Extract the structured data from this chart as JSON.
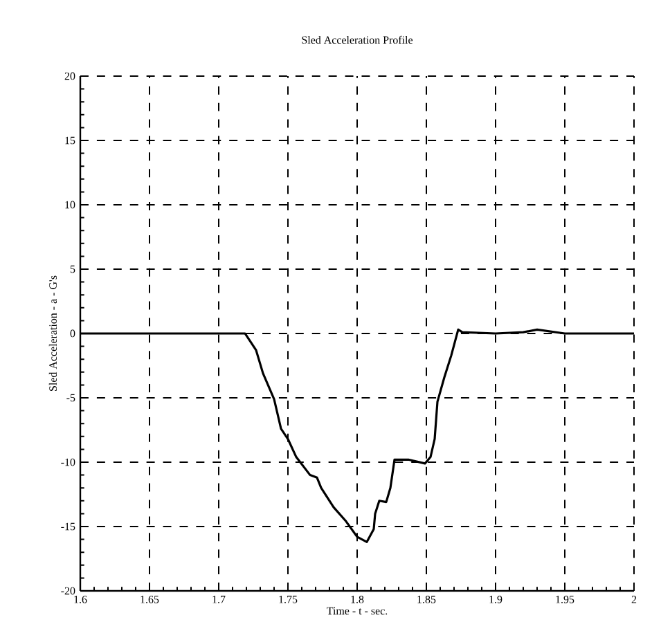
{
  "chart_data": {
    "type": "line",
    "title": "Sled Acceleration Profile",
    "xlabel": "Time - t - sec.",
    "ylabel": "Sled Acceleration - a - G's",
    "xlim": [
      1.6,
      2
    ],
    "xticks": [
      1.6,
      1.65,
      1.7,
      1.75,
      1.8,
      1.85,
      1.9,
      1.95,
      2
    ],
    "ylim": [
      -20,
      20
    ],
    "yticks": [
      -20,
      -15,
      -10,
      -5,
      0,
      5,
      10,
      15,
      20
    ],
    "grid": true,
    "series": [
      {
        "color": "#000000",
        "x": [
          1.6,
          1.65,
          1.7,
          1.719,
          1.727,
          1.732,
          1.74,
          1.745,
          1.75,
          1.756,
          1.766,
          1.771,
          1.774,
          1.783,
          1.792,
          1.8,
          1.807,
          1.812,
          1.813,
          1.816,
          1.821,
          1.824,
          1.827,
          1.837,
          1.849,
          1.853,
          1.856,
          1.858,
          1.863,
          1.868,
          1.873,
          1.876,
          1.9,
          1.92,
          1.93,
          1.95,
          2.0
        ],
        "values": [
          0,
          0,
          0,
          0,
          -1.3,
          -3.1,
          -5.1,
          -7.4,
          -8.2,
          -9.6,
          -11.0,
          -11.2,
          -12.0,
          -13.5,
          -14.6,
          -15.8,
          -16.2,
          -15.2,
          -14.0,
          -13.0,
          -13.1,
          -12.0,
          -9.8,
          -9.8,
          -10.1,
          -9.6,
          -8.2,
          -5.3,
          -3.4,
          -1.7,
          0.3,
          0.1,
          0,
          0.1,
          0.3,
          0,
          0
        ]
      }
    ]
  }
}
